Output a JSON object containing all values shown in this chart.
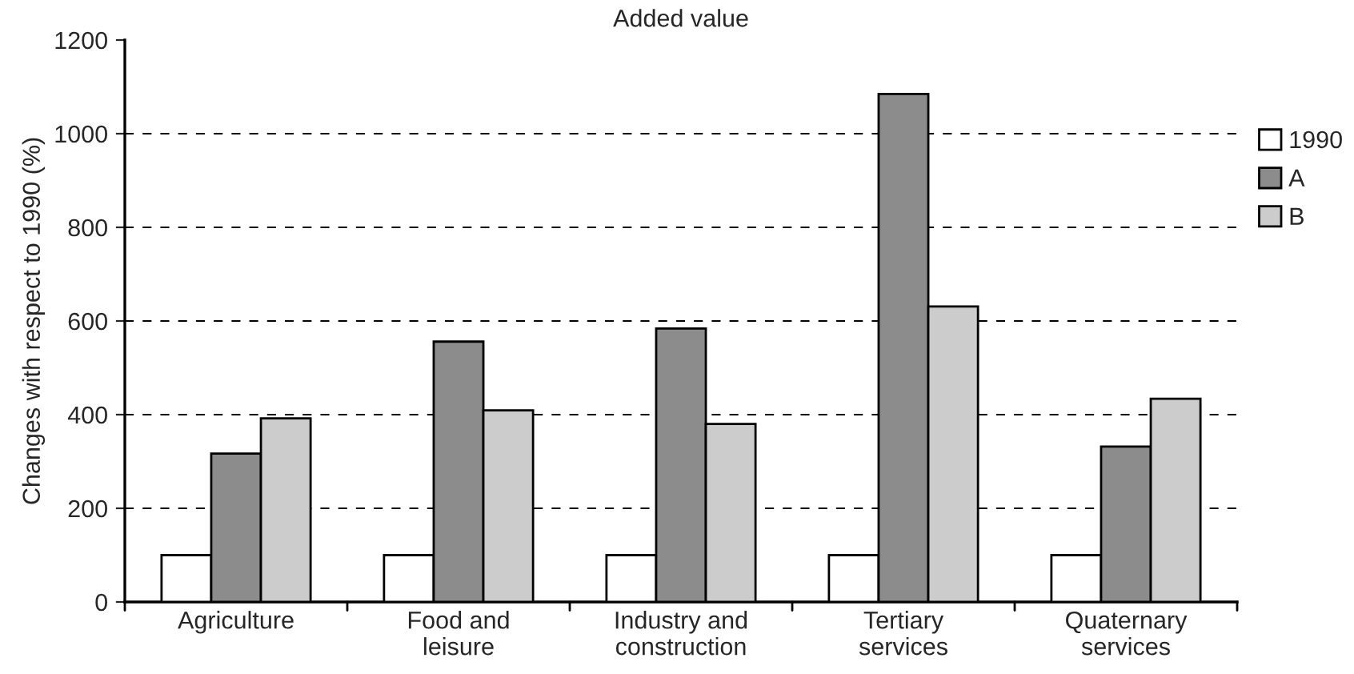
{
  "chart_data": {
    "type": "bar",
    "title": "Added value",
    "ylabel": "Changes with respect to 1990 (%)",
    "categories": [
      "Agriculture",
      "Food and\nleisure",
      "Industry and\nconstruction",
      "Tertiary\nservices",
      "Quaternary\nservices"
    ],
    "series": [
      {
        "name": "1990",
        "color": "#ffffff",
        "values": [
          100,
          100,
          100,
          100,
          100
        ]
      },
      {
        "name": "A",
        "color": "#8c8c8c",
        "values": [
          317,
          556,
          584,
          1085,
          332
        ]
      },
      {
        "name": "B",
        "color": "#cccccc",
        "values": [
          392,
          409,
          380,
          631,
          434
        ]
      }
    ],
    "ylim": [
      0,
      1200
    ],
    "yticks": [
      0,
      200,
      400,
      600,
      800,
      1000,
      1200
    ],
    "grid": "y",
    "legend": "right"
  }
}
